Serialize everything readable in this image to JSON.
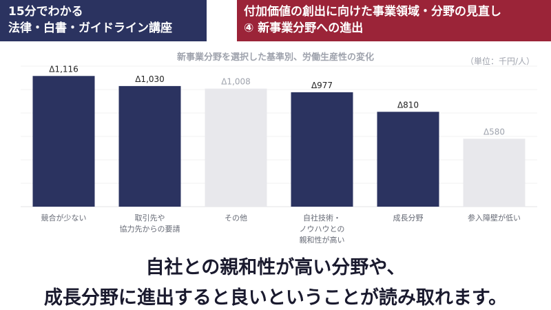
{
  "header": {
    "left_line1": "15分でわかる",
    "left_line2": "法律・白書・ガイドライン講座",
    "right_line1": "付加価値の創出に向けた事業領域・分野の見直し",
    "right_line2": "④ 新事業分野への進出"
  },
  "colors": {
    "header_left_bg": "#2b3360",
    "header_right_bg": "#9b2438",
    "bar_highlight": "#2b3360",
    "bar_muted": "#e8e8ec"
  },
  "chart_data": {
    "type": "bar",
    "title": "新事業分野を選択した基準別、労働生産性の変化",
    "unit": "（単位：千円/人）",
    "categories": [
      [
        "競合が少ない"
      ],
      [
        "取引先や",
        "協力先からの要請"
      ],
      [
        "その他"
      ],
      [
        "自社技術・",
        "ノウハウとの",
        "親和性が高い"
      ],
      [
        "成長分野"
      ],
      [
        "参入障壁が低い"
      ]
    ],
    "values": [
      1116,
      1030,
      1008,
      977,
      810,
      580
    ],
    "value_labels": [
      "Δ1,116",
      "Δ1,030",
      "Δ1,008",
      "Δ977",
      "Δ810",
      "Δ580"
    ],
    "highlighted": [
      true,
      true,
      false,
      true,
      true,
      false
    ],
    "ylim": [
      0,
      1200
    ],
    "grid": true
  },
  "caption": {
    "line1": "自社との親和性が高い分野や、",
    "line2": "成長分野に進出すると良いということが読み取れます。"
  }
}
